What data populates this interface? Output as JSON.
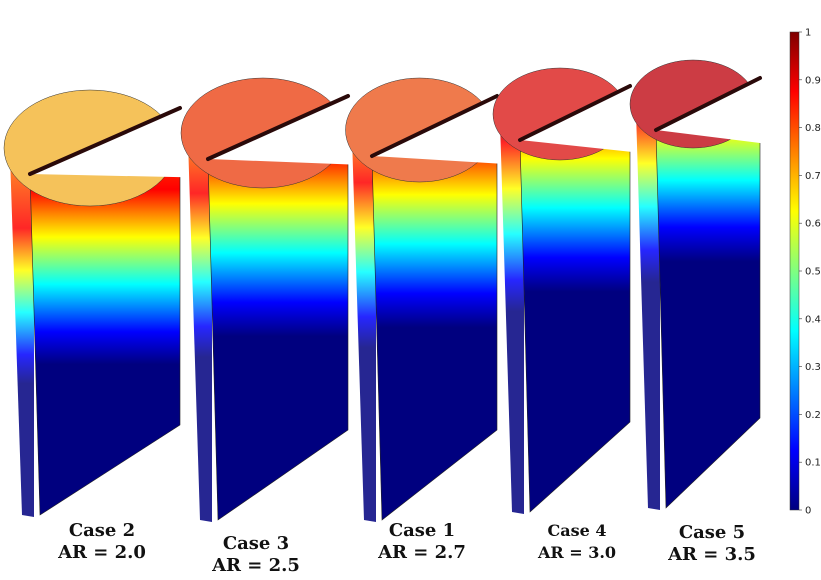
{
  "colorbar": {
    "min": 0,
    "max": 1,
    "ticks": [
      "1",
      "0.9",
      "0.8",
      "0.7",
      "0.6",
      "0.5",
      "0.4",
      "0.3",
      "0.2",
      "0.1",
      "0"
    ],
    "colors": [
      "#00007f",
      "#0000ff",
      "#0080ff",
      "#00ffff",
      "#80ff80",
      "#ffff00",
      "#ff8000",
      "#ff0000",
      "#7f0000"
    ]
  },
  "cases": [
    {
      "case": "Case 2",
      "ar": "AR = 2.0",
      "fill_level": 0.0,
      "top_color": "#f5c25a"
    },
    {
      "case": "Case 3",
      "ar": "AR = 2.5",
      "fill_level": 0.18,
      "top_color": "#ef6a45"
    },
    {
      "case": "Case 1",
      "ar": "AR = 2.7",
      "fill_level": 0.24,
      "top_color": "#ef7a4c"
    },
    {
      "case": "Case 4",
      "ar": "AR = 3.0",
      "fill_level": 0.42,
      "top_color": "#e24a48"
    },
    {
      "case": "Case 5",
      "ar": "AR = 3.5",
      "fill_level": 0.58,
      "top_color": "#cc3c44"
    }
  ]
}
